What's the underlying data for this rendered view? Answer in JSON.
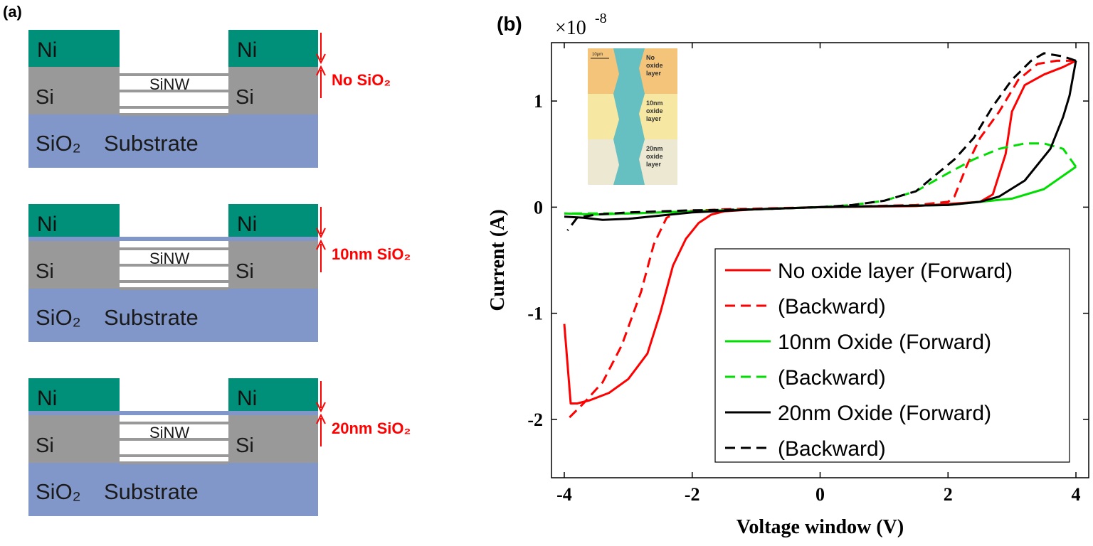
{
  "panel_a": {
    "label": "(a)",
    "structures": [
      {
        "thickness_label": "No SiO₂"
      },
      {
        "thickness_label": "10nm SiO₂"
      },
      {
        "thickness_label": "20nm SiO₂"
      }
    ],
    "electrode": "Ni",
    "layer": "Si",
    "nanowire": "SiNW",
    "substrate_oxide": "SiO₂",
    "substrate": "Substrate"
  },
  "panel_b": {
    "label": "(b)",
    "inset": {
      "scale_bar": "10μm",
      "regions": [
        "No oxide layer",
        "10nm oxide layer",
        "20nm oxide layer"
      ],
      "region_lines": [
        [
          "No",
          "oxide",
          "layer"
        ],
        [
          "10nm",
          "oxide",
          "layer"
        ],
        [
          "20nm",
          "oxide",
          "layer"
        ]
      ]
    }
  },
  "chart_data": {
    "type": "line",
    "xlabel": "Voltage window (V)",
    "ylabel": "Current (A)",
    "y_multiplier": "×10",
    "y_multiplier_exp": "-8",
    "xlim": [
      -4.2,
      4.2
    ],
    "ylim": [
      -2.55,
      1.55
    ],
    "xticks": [
      -4,
      -2,
      0,
      2,
      4
    ],
    "yticks": [
      1,
      0,
      -1,
      -2
    ],
    "xtick_labels": [
      "-4",
      "-2",
      "0",
      "2",
      "4"
    ],
    "ytick_labels": [
      "1",
      "0",
      "-1",
      "-2"
    ],
    "legend_placement": "lower-right",
    "colors": {
      "no_oxide": "#ff0000",
      "ten_nm": "#00dd00",
      "twenty_nm": "#000000"
    },
    "series": [
      {
        "name": "No oxide layer (Forward)",
        "style": "solid",
        "color": "#ff0000",
        "points": [
          [
            -4.0,
            -1.1
          ],
          [
            -3.9,
            -1.85
          ],
          [
            -3.8,
            -1.85
          ],
          [
            -3.6,
            -1.82
          ],
          [
            -3.3,
            -1.75
          ],
          [
            -3.0,
            -1.62
          ],
          [
            -2.7,
            -1.38
          ],
          [
            -2.5,
            -1.0
          ],
          [
            -2.3,
            -0.55
          ],
          [
            -2.1,
            -0.3
          ],
          [
            -1.9,
            -0.15
          ],
          [
            -1.7,
            -0.07
          ],
          [
            -1.5,
            -0.04
          ],
          [
            -1.0,
            -0.02
          ],
          [
            0.0,
            0.0
          ],
          [
            1.5,
            0.01
          ],
          [
            2.5,
            0.05
          ],
          [
            2.7,
            0.12
          ],
          [
            2.9,
            0.5
          ],
          [
            3.0,
            0.9
          ],
          [
            3.2,
            1.15
          ],
          [
            3.5,
            1.25
          ],
          [
            3.8,
            1.32
          ],
          [
            4.0,
            1.38
          ]
        ]
      },
      {
        "name": "(Backward)",
        "style": "dashed",
        "color": "#ff0000",
        "points": [
          [
            4.0,
            1.38
          ],
          [
            3.7,
            1.38
          ],
          [
            3.4,
            1.35
          ],
          [
            3.1,
            1.2
          ],
          [
            2.8,
            0.9
          ],
          [
            2.5,
            0.65
          ],
          [
            2.3,
            0.4
          ],
          [
            2.1,
            0.1
          ],
          [
            2.0,
            0.05
          ],
          [
            1.5,
            0.02
          ],
          [
            0.0,
            0.0
          ],
          [
            -1.5,
            -0.02
          ],
          [
            -2.2,
            -0.04
          ],
          [
            -2.4,
            -0.1
          ],
          [
            -2.6,
            -0.35
          ],
          [
            -2.8,
            -0.8
          ],
          [
            -3.1,
            -1.3
          ],
          [
            -3.4,
            -1.65
          ],
          [
            -3.7,
            -1.85
          ],
          [
            -3.95,
            -2.0
          ]
        ]
      },
      {
        "name": "10nm Oxide (Forward)",
        "style": "solid",
        "color": "#00dd00",
        "points": [
          [
            -4.0,
            -0.06
          ],
          [
            -3.5,
            -0.07
          ],
          [
            -3.0,
            -0.06
          ],
          [
            -2.0,
            -0.04
          ],
          [
            -1.0,
            -0.02
          ],
          [
            0.0,
            0.0
          ],
          [
            1.0,
            0.01
          ],
          [
            2.0,
            0.02
          ],
          [
            3.0,
            0.08
          ],
          [
            3.5,
            0.17
          ],
          [
            4.0,
            0.38
          ]
        ]
      },
      {
        "name": "(Backward)",
        "style": "dashed",
        "color": "#00dd00",
        "points": [
          [
            4.0,
            0.38
          ],
          [
            3.8,
            0.55
          ],
          [
            3.5,
            0.6
          ],
          [
            3.2,
            0.6
          ],
          [
            2.8,
            0.55
          ],
          [
            2.4,
            0.45
          ],
          [
            2.0,
            0.32
          ],
          [
            1.5,
            0.15
          ],
          [
            1.0,
            0.06
          ],
          [
            0.5,
            0.02
          ],
          [
            0.0,
            0.0
          ],
          [
            -1.0,
            -0.02
          ],
          [
            -2.0,
            -0.04
          ],
          [
            -3.0,
            -0.06
          ],
          [
            -4.0,
            -0.06
          ]
        ]
      },
      {
        "name": "20nm Oxide (Forward)",
        "style": "solid",
        "color": "#000000",
        "points": [
          [
            -4.0,
            -0.09
          ],
          [
            -3.7,
            -0.1
          ],
          [
            -3.4,
            -0.12
          ],
          [
            -3.0,
            -0.11
          ],
          [
            -2.5,
            -0.08
          ],
          [
            -2.0,
            -0.05
          ],
          [
            -1.0,
            -0.02
          ],
          [
            0.0,
            0.0
          ],
          [
            1.0,
            0.01
          ],
          [
            2.0,
            0.02
          ],
          [
            2.5,
            0.05
          ],
          [
            2.8,
            0.1
          ],
          [
            3.2,
            0.25
          ],
          [
            3.6,
            0.55
          ],
          [
            3.8,
            0.85
          ],
          [
            3.9,
            1.05
          ],
          [
            4.0,
            1.38
          ]
        ]
      },
      {
        "name": "(Backward)",
        "style": "dashed",
        "color": "#000000",
        "points": [
          [
            4.0,
            1.38
          ],
          [
            3.8,
            1.42
          ],
          [
            3.5,
            1.45
          ],
          [
            3.3,
            1.38
          ],
          [
            3.0,
            1.2
          ],
          [
            2.7,
            0.95
          ],
          [
            2.4,
            0.65
          ],
          [
            2.1,
            0.45
          ],
          [
            1.8,
            0.3
          ],
          [
            1.5,
            0.15
          ],
          [
            1.0,
            0.06
          ],
          [
            0.5,
            0.02
          ],
          [
            0.0,
            0.0
          ],
          [
            -1.0,
            -0.02
          ],
          [
            -2.0,
            -0.03
          ],
          [
            -3.0,
            -0.05
          ],
          [
            -3.5,
            -0.07
          ],
          [
            -3.8,
            -0.1
          ],
          [
            -3.95,
            -0.22
          ]
        ]
      }
    ]
  }
}
